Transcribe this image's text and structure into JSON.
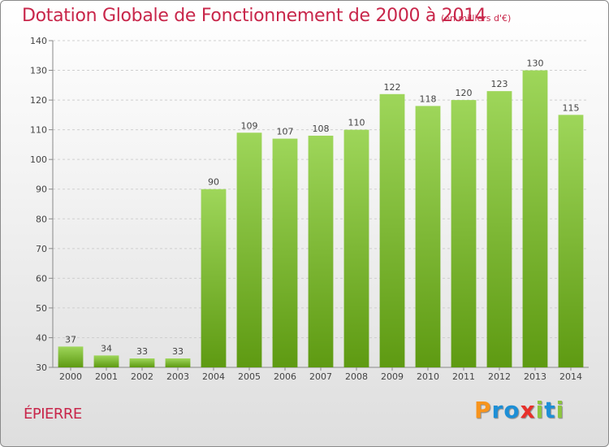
{
  "title": "Dotation Globale de Fonctionnement de 2000 à 2014",
  "subtitle": "(en milliers d'€)",
  "commune": "ÉPIERRE",
  "logo": {
    "letters": [
      "P",
      "r",
      "o",
      "x",
      "i",
      "t",
      "i"
    ],
    "colors": [
      "#f7941d",
      "#1d8fd6",
      "#1d8fd6",
      "#e8302a",
      "#8dc63f",
      "#1d8fd6",
      "#8dc63f"
    ]
  },
  "colors": {
    "bar_top": "#9ed65a",
    "bar_bottom": "#5e9a12",
    "title": "#c8264a"
  },
  "chart_data": {
    "type": "bar",
    "title": "Dotation Globale de Fonctionnement de 2000 à 2014",
    "subtitle": "(en milliers d'€)",
    "categories": [
      "2000",
      "2001",
      "2002",
      "2003",
      "2004",
      "2005",
      "2006",
      "2007",
      "2008",
      "2009",
      "2010",
      "2011",
      "2012",
      "2013",
      "2014"
    ],
    "values": [
      37,
      34,
      33,
      33,
      90,
      109,
      107,
      108,
      110,
      122,
      118,
      120,
      123,
      130,
      115
    ],
    "ylim": [
      30,
      140
    ],
    "yticks": [
      30,
      40,
      50,
      60,
      70,
      80,
      90,
      100,
      110,
      120,
      130,
      140
    ],
    "grid": true,
    "legend": "none"
  }
}
